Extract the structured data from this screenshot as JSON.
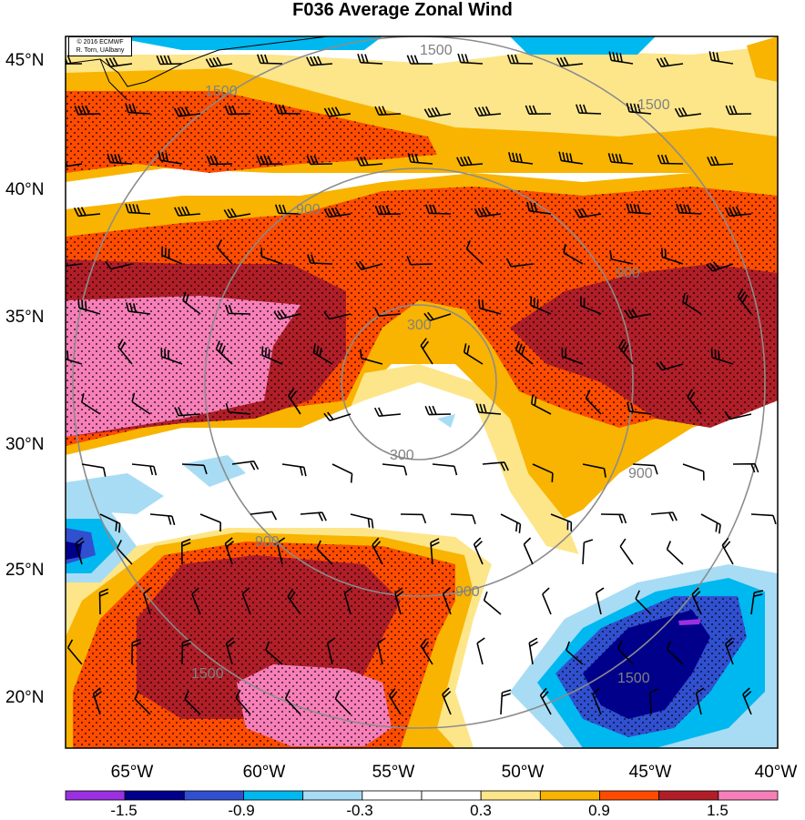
{
  "title": "F036 Average Zonal Wind",
  "credit": {
    "line1": "© 2016 ECMWF",
    "line2": "R. Torn, UAlbany"
  },
  "latitude_labels": [
    "45°N",
    "40°N",
    "35°N",
    "30°N",
    "25°N",
    "20°N"
  ],
  "longitude_labels": [
    "65°W",
    "60°W",
    "55°W",
    "50°W",
    "45°W",
    "40°W"
  ],
  "range_ring_labels": [
    "300",
    "300",
    "900",
    "900",
    "900",
    "900",
    "900",
    "1500",
    "1500",
    "1500",
    "1500",
    "1500"
  ],
  "colorbar": {
    "tick_labels": [
      "-1.5",
      "-0.9",
      "-0.3",
      "0.3",
      "0.9",
      "1.5"
    ],
    "colors": [
      "#9b30e0",
      "#00008b",
      "#3050d0",
      "#00b8f0",
      "#a8dcf5",
      "#ffffff",
      "#ffffff",
      "#fde68a",
      "#f8b400",
      "#ff4c00",
      "#b01e28",
      "#f77fb8"
    ]
  },
  "colors": {
    "hatch": "#000000",
    "rings": "#8c8c8c",
    "frame": "#000000"
  }
}
